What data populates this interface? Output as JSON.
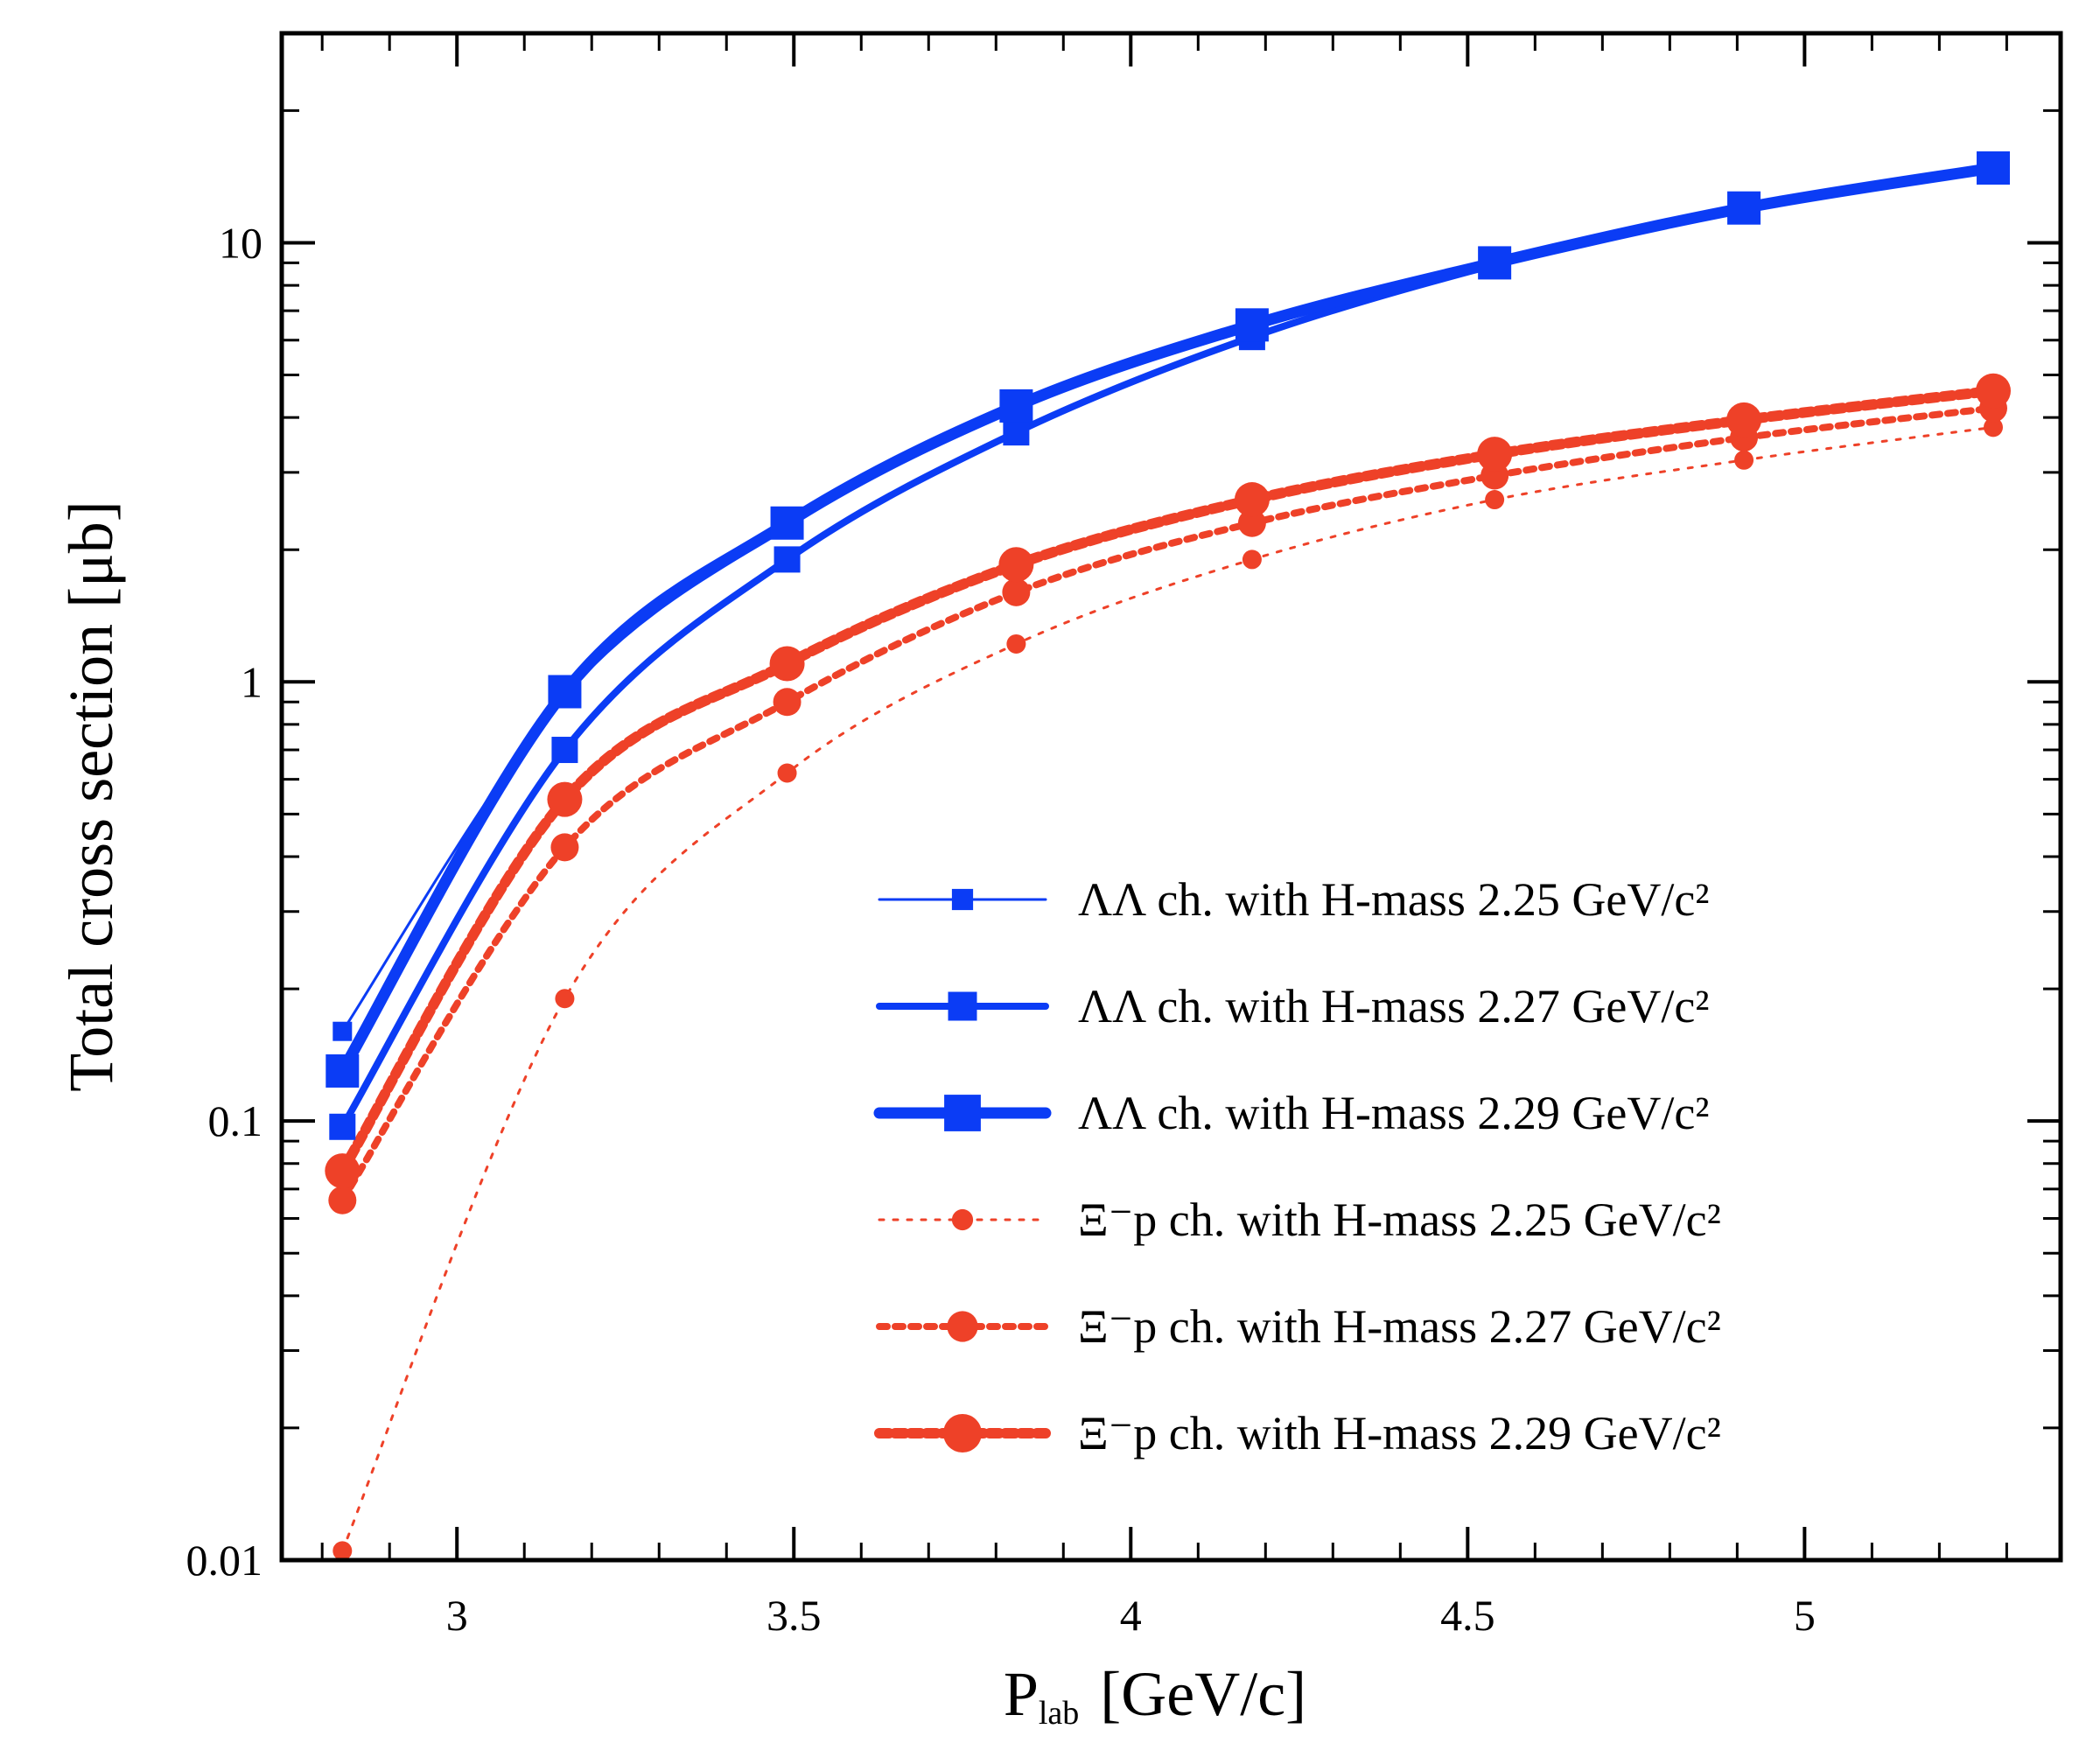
{
  "chart_data": {
    "type": "line",
    "title": "",
    "xlabel": "P",
    "xlabel_subscript": "lab",
    "xlabel_unit": "[GeV/c]",
    "ylabel": "Total cross section [μb]",
    "yscale": "log",
    "xlim": [
      2.74,
      5.38
    ],
    "ylim": [
      0.01,
      30
    ],
    "xticks": [
      3,
      3.5,
      4,
      4.5,
      5
    ],
    "xtick_labels": [
      "3",
      "3.5",
      "4",
      "4.5",
      "5"
    ],
    "yticks": [
      0.01,
      0.1,
      1,
      10
    ],
    "ytick_labels": [
      "0.01",
      "0.1",
      "1",
      "10"
    ],
    "legend_position": "lower-right",
    "x": [
      2.83,
      3.16,
      3.49,
      3.83,
      4.18,
      4.54,
      4.91,
      5.28
    ],
    "series": [
      {
        "name": "ΛΛ ch. with H-mass 2.25 GeV/c²",
        "style": "lambda",
        "weight": 1,
        "color": "#0b3cf5",
        "values": [
          0.16,
          0.93,
          2.25,
          4.2,
          6.4,
          9.0,
          12.0,
          15.0
        ]
      },
      {
        "name": "ΛΛ ch. with H-mass 2.27 GeV/c²",
        "style": "lambda",
        "weight": 2,
        "color": "#0b3cf5",
        "values": [
          0.097,
          0.7,
          1.9,
          3.7,
          6.1,
          8.9,
          11.9,
          14.8
        ]
      },
      {
        "name": "ΛΛ ch. with H-mass 2.29 GeV/c²",
        "style": "lambda",
        "weight": 3,
        "color": "#0b3cf5",
        "values": [
          0.13,
          0.95,
          2.3,
          4.25,
          6.5,
          9.0,
          12.0,
          14.8
        ]
      },
      {
        "name": "Ξ⁻p ch. with H-mass 2.25 GeV/c²",
        "style": "xi",
        "weight": 1,
        "color": "#ee4128",
        "values": [
          0.0105,
          0.19,
          0.62,
          1.22,
          1.9,
          2.6,
          3.2,
          3.8
        ]
      },
      {
        "name": "Ξ⁻p ch. with H-mass 2.27 GeV/c²",
        "style": "xi",
        "weight": 2,
        "color": "#ee4128",
        "values": [
          0.066,
          0.42,
          0.9,
          1.6,
          2.3,
          2.95,
          3.6,
          4.2
        ]
      },
      {
        "name": "Ξ⁻p ch. with H-mass 2.29 GeV/c²",
        "style": "xi",
        "weight": 3,
        "color": "#ee4128",
        "values": [
          0.077,
          0.54,
          1.1,
          1.85,
          2.6,
          3.3,
          3.95,
          4.6
        ]
      }
    ]
  }
}
